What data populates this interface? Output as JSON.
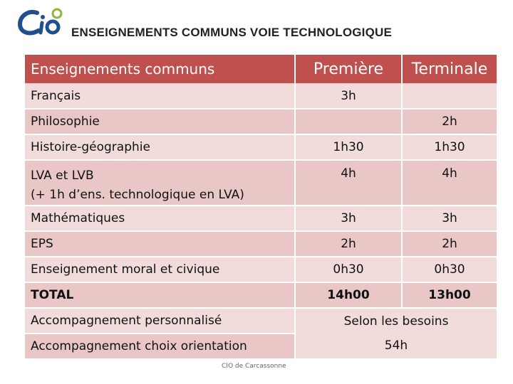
{
  "header": {
    "logo_text": "Cio",
    "title": "ENSEIGNEMENTS COMMUNS VOIE TECHNOLOGIQUE"
  },
  "table": {
    "columns": [
      "Enseignements communs",
      "Première",
      "Terminale"
    ],
    "rows": [
      {
        "subject": "Français",
        "premiere": "3h",
        "terminale": ""
      },
      {
        "subject": "Philosophie",
        "premiere": "",
        "terminale": "2h"
      },
      {
        "subject": "Histoire-géographie",
        "premiere": "1h30",
        "terminale": "1h30"
      },
      {
        "subject": "LVA et LVB\n(+ 1h d’ens. technologique en LVA)",
        "premiere": "4h",
        "terminale": "4h"
      },
      {
        "subject": "Mathématiques",
        "premiere": "3h",
        "terminale": "3h"
      },
      {
        "subject": "EPS",
        "premiere": "2h",
        "terminale": "2h"
      },
      {
        "subject": "Enseignement moral et civique",
        "premiere": "0h30",
        "terminale": "0h30"
      },
      {
        "subject": "TOTAL",
        "premiere": "14h00",
        "terminale": "13h00"
      }
    ],
    "extra": {
      "accompagnement_perso": "Accompagnement personnalisé",
      "accompagnement_orientation": "Accompagnement choix orientation",
      "merged_line1": "Selon les besoins",
      "merged_line2": "54h"
    }
  },
  "footer": {
    "text": "CIO de Carcassonne"
  },
  "colors": {
    "header_bg": "#c0504d",
    "row_light": "#f2dcdb",
    "row_dark": "#e9c7c6"
  }
}
